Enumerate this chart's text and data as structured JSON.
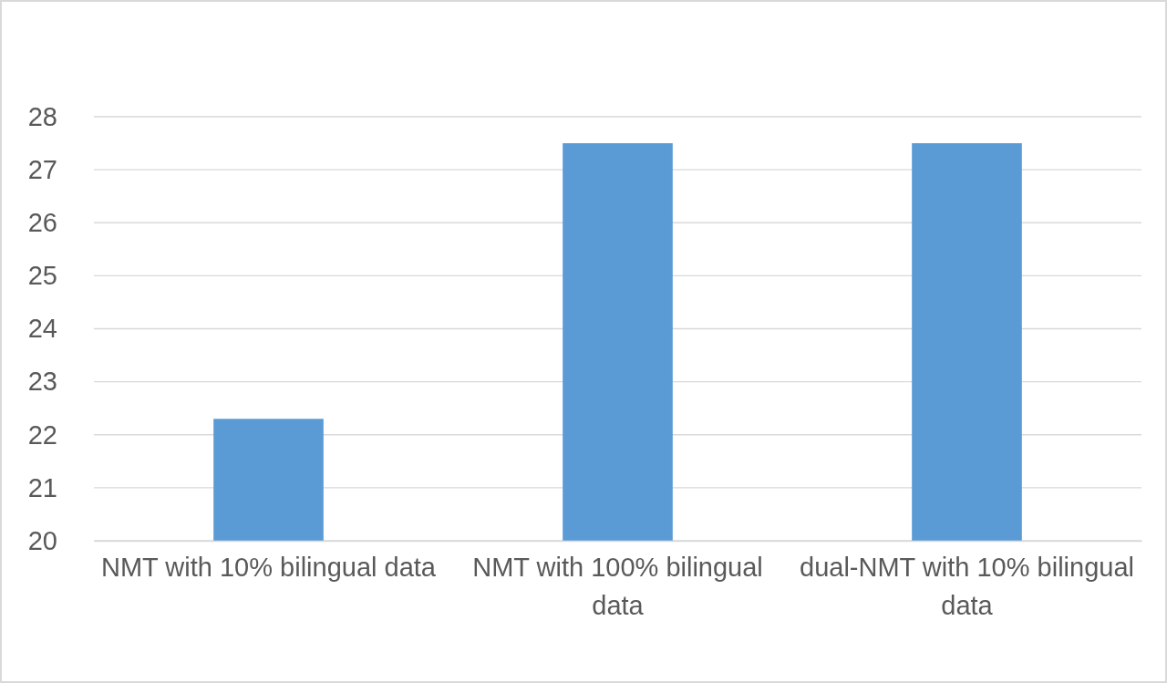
{
  "chart_data": {
    "type": "bar",
    "categories": [
      "NMT with 10% bilingual data",
      "NMT with 100% bilingual data",
      "dual-NMT with 10% bilingual data"
    ],
    "values": [
      22.3,
      27.5,
      27.5
    ],
    "color": "#5b9bd5",
    "ylim": [
      20,
      28
    ],
    "yticks": [
      20,
      21,
      22,
      23,
      24,
      25,
      26,
      27,
      28
    ],
    "grid": "y"
  }
}
